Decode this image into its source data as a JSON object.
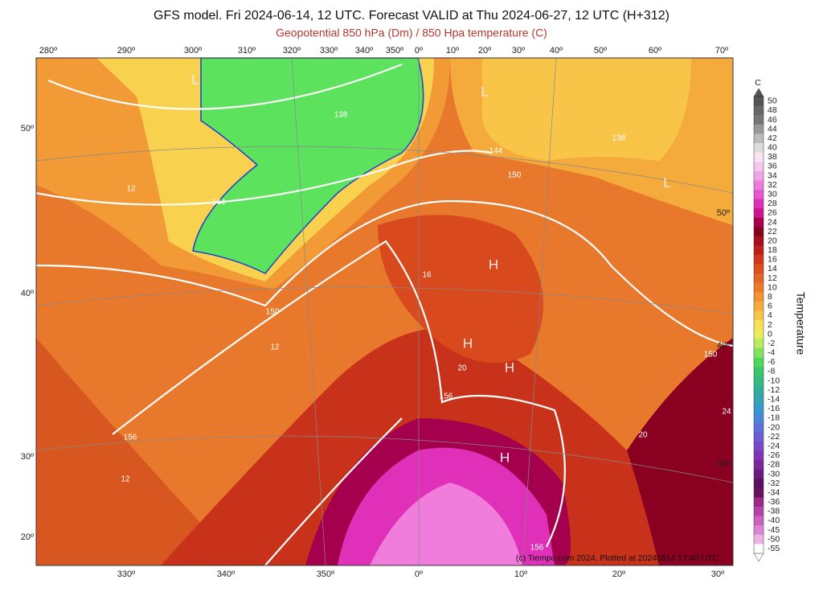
{
  "header": {
    "title": "GFS model. Fri 2024-06-14, 12 UTC. Forecast VALID at Thu 2024-06-27, 12 UTC (H+312)",
    "subtitle": "Geopotential 850 hPa (Dm) / 850 Hpa temperature (C)"
  },
  "map": {
    "top_labels": [
      "280º",
      "290º",
      "300º",
      "310º",
      "320º",
      "330º",
      "340º",
      "350º",
      "0º",
      "10º",
      "20º",
      "30º",
      "40º",
      "50º",
      "60º",
      "70º"
    ],
    "bottom_labels": [
      "330º",
      "340º",
      "350º",
      "0º",
      "10º",
      "20º",
      "30º"
    ],
    "left_labels": [
      "50º",
      "40º",
      "30º",
      "20º"
    ],
    "right_labels": [
      "50º",
      "40º",
      "30º"
    ],
    "annotations": [
      "L",
      "L",
      "L",
      "H",
      "H",
      "H",
      "H",
      "138",
      "144",
      "138",
      "144",
      "150",
      "150",
      "150",
      "156",
      "156",
      "156",
      "12",
      "12",
      "16",
      "20",
      "24",
      "20",
      "12"
    ],
    "credit": "(c) Tiempo.com 2024. Plotted at 20240614 17:40 UTC"
  },
  "colorbar": {
    "unit": "C",
    "title": "Temperature",
    "ticks": [
      50,
      48,
      46,
      44,
      42,
      40,
      38,
      36,
      34,
      32,
      30,
      28,
      26,
      24,
      22,
      20,
      18,
      16,
      14,
      12,
      10,
      8,
      6,
      4,
      2,
      0,
      -2,
      -4,
      -6,
      -8,
      -10,
      -12,
      -14,
      -16,
      -18,
      -20,
      -22,
      -24,
      -26,
      -28,
      -30,
      -32,
      -34,
      -36,
      -38,
      -40,
      -45,
      -50,
      -55
    ],
    "colors": [
      "#555555",
      "#666666",
      "#777777",
      "#999999",
      "#bbbbbb",
      "#dddddd",
      "#fbe3f6",
      "#f7c6ef",
      "#f2a2e6",
      "#ec7ddc",
      "#e657cf",
      "#e02fb8",
      "#d0128f",
      "#a5004e",
      "#8a0020",
      "#a80f1d",
      "#c01f1c",
      "#d0361c",
      "#dc4e20",
      "#e56526",
      "#ec7b2c",
      "#f19333",
      "#f5ab3c",
      "#f8c548",
      "#fae05a",
      "#e9ef5c",
      "#b8eb5e",
      "#7de35c",
      "#4fd95b",
      "#3bc769",
      "#36b983",
      "#32ad9c",
      "#34a3b5",
      "#3a97cc",
      "#4a86d6",
      "#5a72d6",
      "#6a5ed2",
      "#7848c8",
      "#7e35b4",
      "#7a2699",
      "#6c1a7d",
      "#5a0f62",
      "#6a1060",
      "#9a2a8a",
      "#b743a8",
      "#cc62c0",
      "#dc86d3",
      "#eab2e5",
      "#ffffff"
    ]
  }
}
